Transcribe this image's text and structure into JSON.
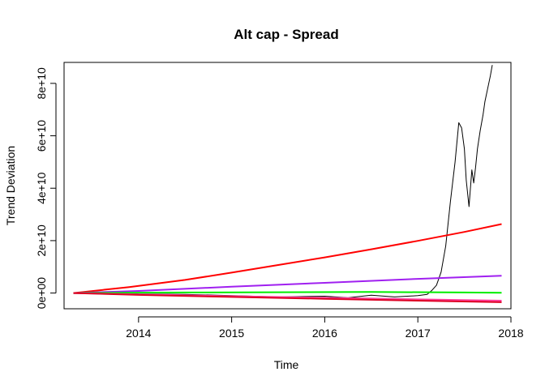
{
  "chart_data": {
    "type": "line",
    "title": "Alt cap - Spread",
    "xlabel": "Time",
    "ylabel": "Trend Deviation",
    "xlim": [
      2013.2,
      2018.0
    ],
    "ylim": [
      -6000000000,
      88000000000
    ],
    "x_ticks": [
      2014,
      2015,
      2016,
      2017,
      2018
    ],
    "x_tick_labels": [
      "2014",
      "2015",
      "2016",
      "2017",
      "2018"
    ],
    "y_ticks": [
      0,
      20000000000,
      40000000000,
      60000000000,
      80000000000
    ],
    "y_tick_labels": [
      "0e+00",
      "2e+10",
      "4e+10",
      "6e+10",
      "8e+10"
    ],
    "grid": false,
    "legend": "none",
    "series": [
      {
        "color": "#000000",
        "width": 1,
        "x": [
          2013.3,
          2013.6,
          2014.0,
          2014.5,
          2015.0,
          2015.5,
          2016.0,
          2016.25,
          2016.5,
          2016.75,
          2017.0,
          2017.1,
          2017.15,
          2017.2,
          2017.25,
          2017.3,
          2017.35,
          2017.4,
          2017.44,
          2017.47,
          2017.5,
          2017.52,
          2017.55,
          2017.58,
          2017.6,
          2017.62,
          2017.64,
          2017.67,
          2017.7,
          2017.72,
          2017.75,
          2017.78,
          2017.8
        ],
        "y": [
          0,
          200000000,
          -300000000,
          -500000000,
          -1000000000,
          -1500000000,
          -1200000000,
          -1800000000,
          -800000000,
          -1500000000,
          -1000000000,
          -500000000,
          1000000000,
          3000000000,
          8000000000,
          18000000000,
          35000000000,
          50000000000,
          65000000000,
          63000000000,
          55000000000,
          43000000000,
          33000000000,
          47000000000,
          42000000000,
          48000000000,
          55000000000,
          62000000000,
          68000000000,
          73000000000,
          78000000000,
          83000000000,
          87000000000
        ]
      },
      {
        "color": "#ff0000",
        "width": 2,
        "x": [
          2013.3,
          2013.9,
          2014.5,
          2015.0,
          2015.5,
          2016.0,
          2016.5,
          2017.0,
          2017.5,
          2017.9
        ],
        "y": [
          0,
          2300000000,
          5000000000,
          7800000000,
          10700000000,
          13600000000,
          16700000000,
          19900000000,
          23300000000,
          26300000000
        ]
      },
      {
        "color": "#a020f0",
        "width": 2,
        "x": [
          2013.3,
          2014.0,
          2015.0,
          2016.0,
          2017.0,
          2017.9
        ],
        "y": [
          0,
          800000000,
          2400000000,
          3900000000,
          5400000000,
          6600000000
        ]
      },
      {
        "color": "#00ee00",
        "width": 2,
        "x": [
          2013.3,
          2014.5,
          2015.5,
          2016.5,
          2017.5,
          2017.9
        ],
        "y": [
          0,
          200000000,
          300000000,
          400000000,
          200000000,
          100000000
        ]
      },
      {
        "color": "#ff3fa0",
        "width": 2,
        "x": [
          2013.3,
          2014.0,
          2015.0,
          2016.0,
          2017.0,
          2017.9
        ],
        "y": [
          0,
          -500000000,
          -1200000000,
          -1800000000,
          -2400000000,
          -2900000000
        ]
      },
      {
        "color": "#dd0022",
        "width": 2,
        "x": [
          2013.3,
          2014.0,
          2015.0,
          2016.0,
          2017.0,
          2017.9
        ],
        "y": [
          0,
          -700000000,
          -1500000000,
          -2200000000,
          -2900000000,
          -3500000000
        ]
      }
    ]
  }
}
